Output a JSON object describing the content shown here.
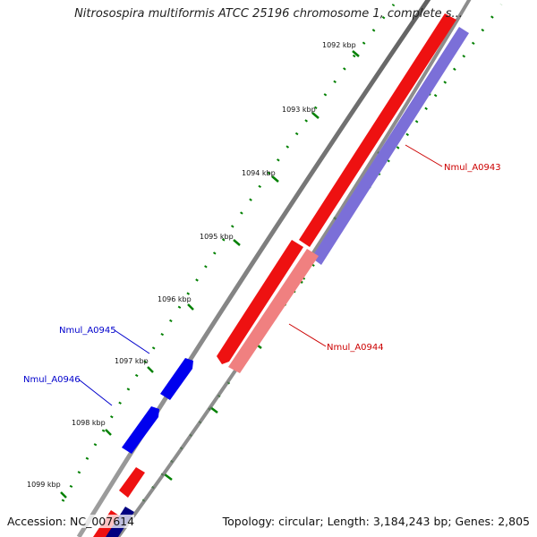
{
  "title": "Nitrosospira multiformis ATCC 25196 chromosome 1, complete s...",
  "footer": {
    "accession": "Accession: NC_007614",
    "summary": "Topology: circular; Length: 3,184,243 bp; Genes: 2,805"
  },
  "ticks": [
    "1092 kbp",
    "1093 kbp",
    "1094 kbp",
    "1095 kbp",
    "1096 kbp",
    "1097 kbp",
    "1098 kbp",
    "1099 kbp"
  ],
  "genes": [
    {
      "name": "Nmul_A0943",
      "color": "#cc0000"
    },
    {
      "name": "Nmul_A0944",
      "color": "#cc0000"
    },
    {
      "name": "Nmul_A0945",
      "color": "#0000cc"
    },
    {
      "name": "Nmul_A0946",
      "color": "#0000cc"
    }
  ],
  "colors": {
    "forward_strand": "#ff0000",
    "reverse_strand": "#0000ff",
    "gene_forward_light": "#f08080",
    "gene_reverse_light": "#7b6fd8",
    "backbone": "#808080",
    "tick_marks": "#008000"
  }
}
